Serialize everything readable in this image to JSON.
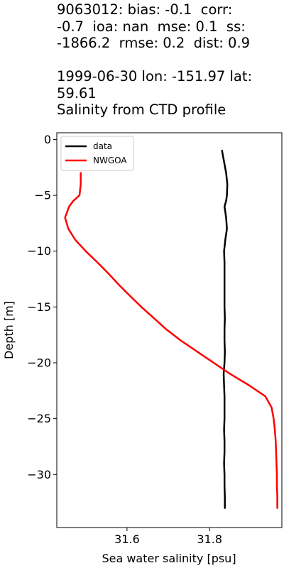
{
  "chart_data": {
    "type": "line",
    "title_lines": [
      "9063012: bias: -0.1  corr:",
      "-0.7  ioa: nan  mse: 0.1  ss:",
      "-1866.2  rmse: 0.2  dist: 0.9",
      "",
      "1999-06-30 lon: -151.97 lat:",
      "59.61",
      "Salinity from CTD profile"
    ],
    "xlabel": "Sea water salinity [psu]",
    "ylabel": "Depth [m]",
    "xlim": [
      31.43,
      31.975
    ],
    "ylim": [
      -34.75,
      0.6
    ],
    "xticks": [
      31.6,
      31.8
    ],
    "xtick_labels": [
      "31.6",
      "31.8"
    ],
    "yticks": [
      0,
      -5,
      -10,
      -15,
      -20,
      -25,
      -30
    ],
    "ytick_labels": [
      "0",
      "−5",
      "−10",
      "−15",
      "−20",
      "−25",
      "−30"
    ],
    "grid": false,
    "legend_position": "top-left",
    "series": [
      {
        "name": "data",
        "color": "#000000",
        "points": [
          [
            31.83,
            -1
          ],
          [
            31.835,
            -2
          ],
          [
            31.84,
            -3
          ],
          [
            31.843,
            -4
          ],
          [
            31.842,
            -5
          ],
          [
            31.84,
            -5.5
          ],
          [
            31.836,
            -6
          ],
          [
            31.84,
            -7
          ],
          [
            31.842,
            -8
          ],
          [
            31.838,
            -9
          ],
          [
            31.835,
            -10
          ],
          [
            31.836,
            -11
          ],
          [
            31.836,
            -12
          ],
          [
            31.836,
            -13
          ],
          [
            31.836,
            -14
          ],
          [
            31.836,
            -15
          ],
          [
            31.837,
            -16
          ],
          [
            31.836,
            -17
          ],
          [
            31.836,
            -18
          ],
          [
            31.837,
            -19
          ],
          [
            31.836,
            -20
          ],
          [
            31.834,
            -21
          ],
          [
            31.835,
            -22
          ],
          [
            31.836,
            -23
          ],
          [
            31.836,
            -24
          ],
          [
            31.836,
            -25
          ],
          [
            31.835,
            -26
          ],
          [
            31.836,
            -27
          ],
          [
            31.836,
            -28
          ],
          [
            31.835,
            -29
          ],
          [
            31.836,
            -30
          ],
          [
            31.836,
            -31
          ],
          [
            31.837,
            -32
          ],
          [
            31.837,
            -33
          ]
        ]
      },
      {
        "name": "NWGOA",
        "color": "#ff0000",
        "points": [
          [
            31.488,
            -3
          ],
          [
            31.488,
            -4
          ],
          [
            31.485,
            -5
          ],
          [
            31.47,
            -5.5
          ],
          [
            31.46,
            -6
          ],
          [
            31.45,
            -7
          ],
          [
            31.458,
            -8
          ],
          [
            31.475,
            -9
          ],
          [
            31.5,
            -10
          ],
          [
            31.528,
            -11
          ],
          [
            31.555,
            -12
          ],
          [
            31.58,
            -13
          ],
          [
            31.607,
            -14
          ],
          [
            31.635,
            -15
          ],
          [
            31.665,
            -16
          ],
          [
            31.695,
            -17
          ],
          [
            31.73,
            -18
          ],
          [
            31.77,
            -19
          ],
          [
            31.81,
            -20
          ],
          [
            31.85,
            -21
          ],
          [
            31.895,
            -22
          ],
          [
            31.935,
            -23
          ],
          [
            31.95,
            -24
          ],
          [
            31.955,
            -25
          ],
          [
            31.958,
            -26
          ],
          [
            31.96,
            -27
          ],
          [
            31.961,
            -28
          ],
          [
            31.962,
            -29
          ],
          [
            31.963,
            -30
          ],
          [
            31.963,
            -31
          ],
          [
            31.964,
            -32
          ],
          [
            31.964,
            -33
          ]
        ]
      }
    ]
  }
}
